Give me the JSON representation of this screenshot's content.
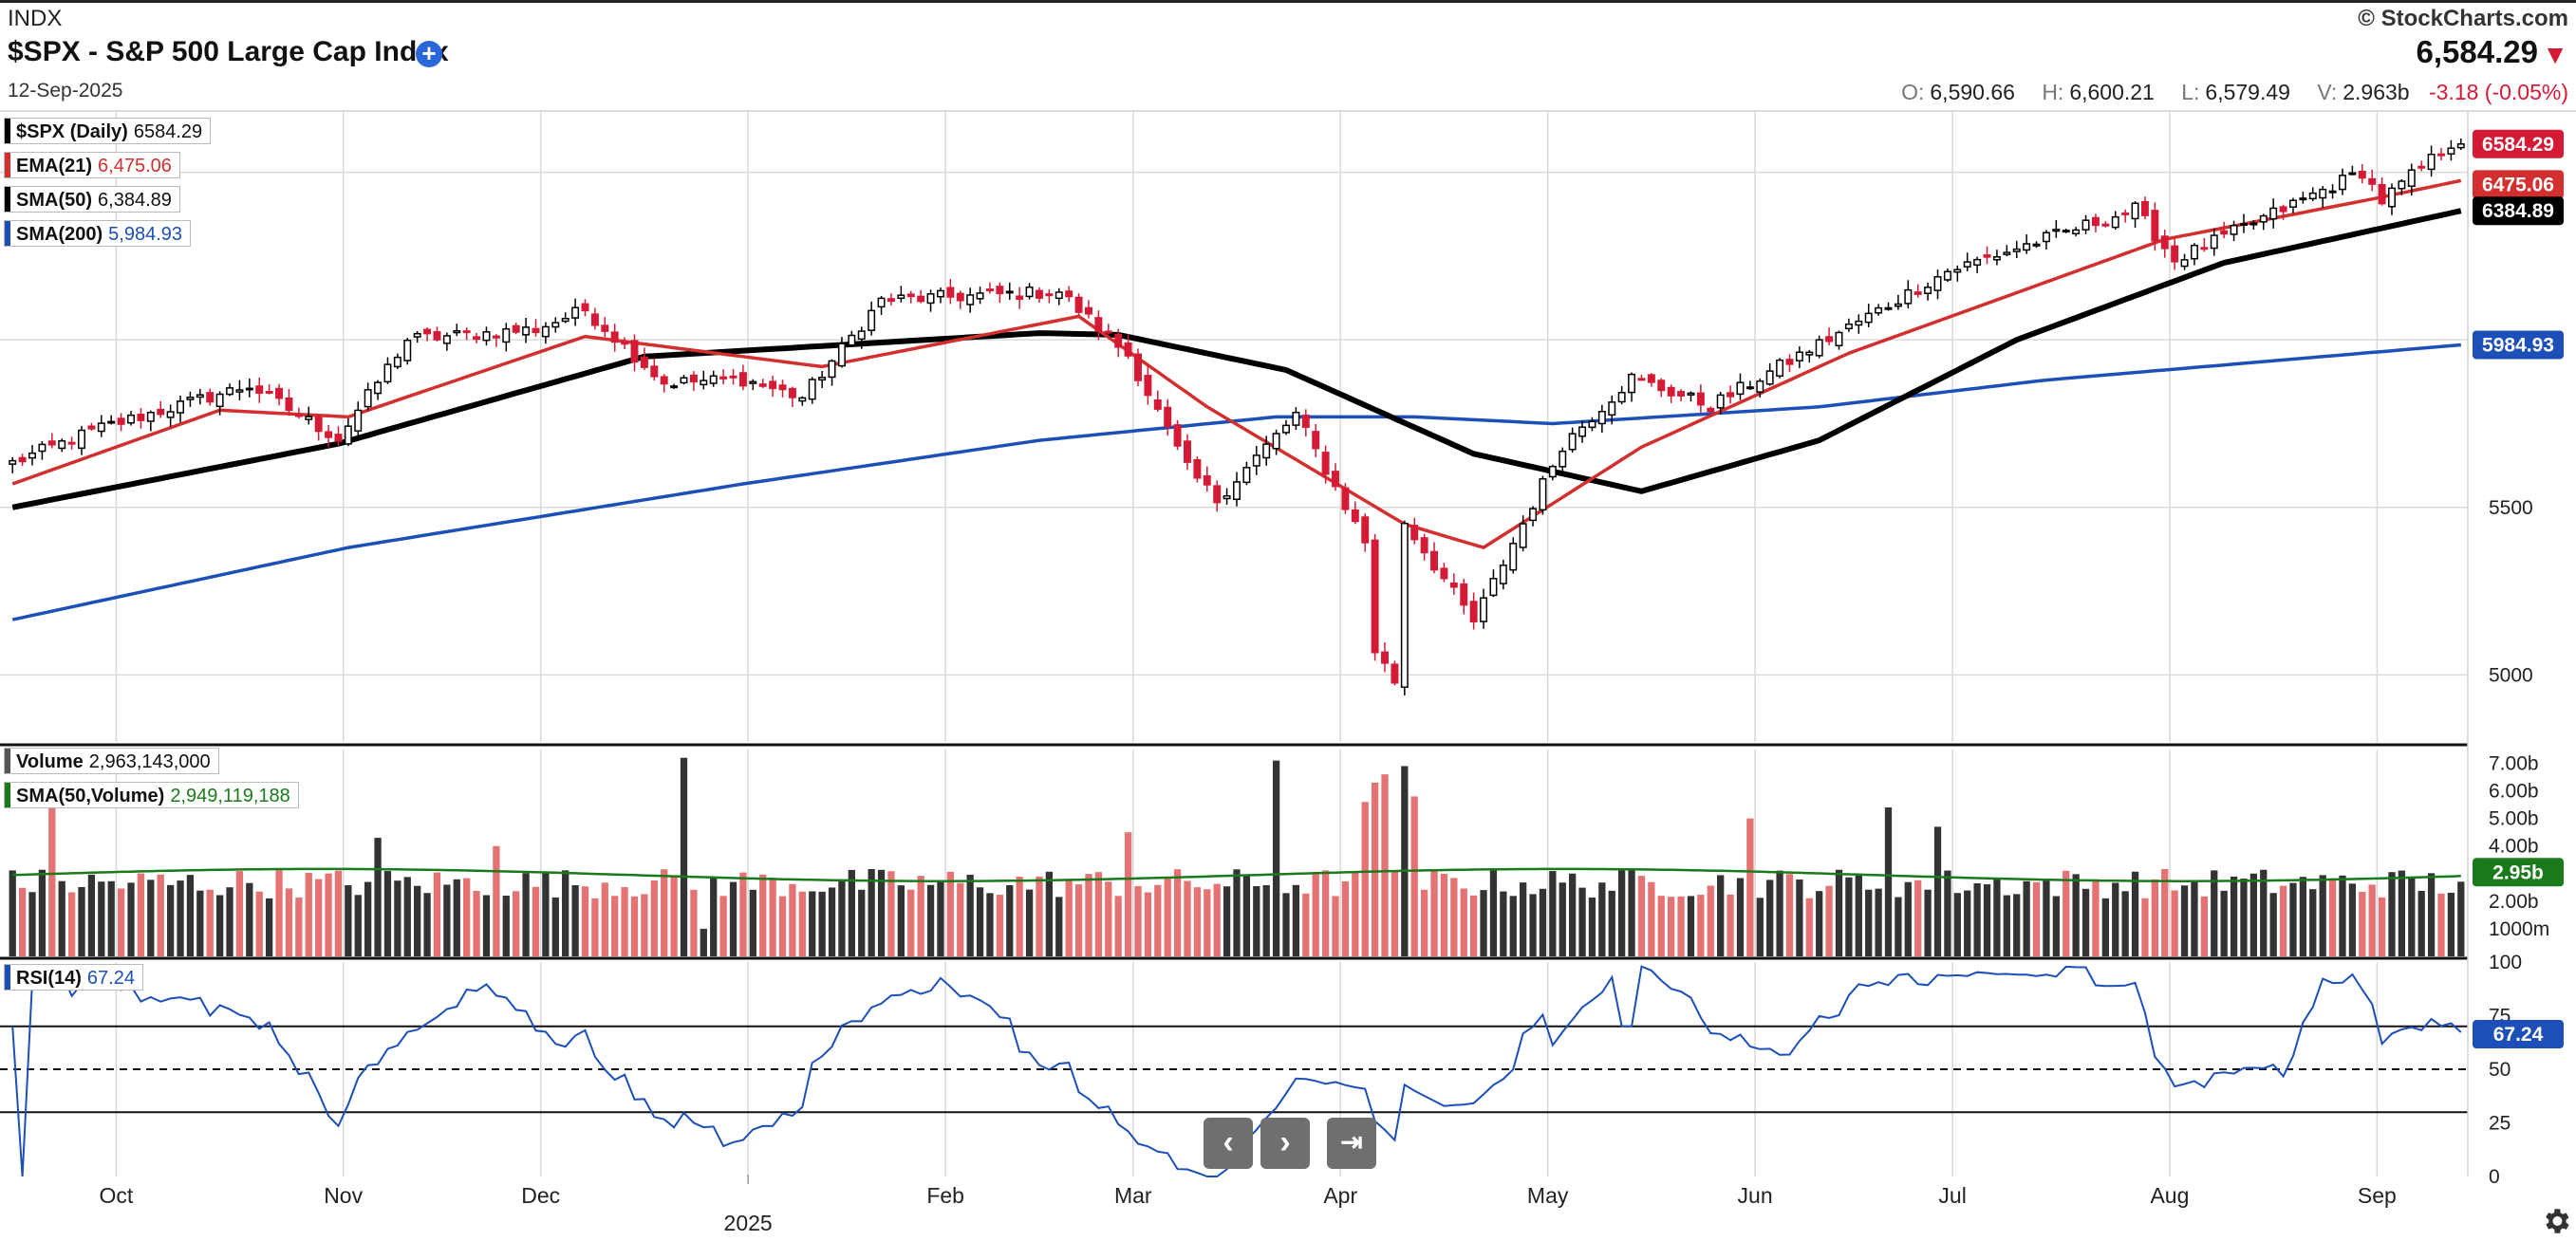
{
  "header": {
    "exchange": "INDX",
    "title": "$SPX - S&P 500 Large Cap Index",
    "add_symbol": "+",
    "date": "12-Sep-2025",
    "copyright": "© StockCharts.com",
    "last_price": "6,584.29",
    "down_arrow": "▼",
    "ohlc": {
      "o_label": "O:",
      "o": "6,590.66",
      "h_label": "H:",
      "h": "6,600.21",
      "l_label": "L:",
      "l": "6,579.49",
      "v_label": "V:",
      "v": "2.963b",
      "change": "-3.18 (-0.05%)"
    }
  },
  "legends": {
    "price": [
      {
        "label": "$SPX (Daily)",
        "value": "6584.29",
        "color": "#000000"
      },
      {
        "label": "EMA(21)",
        "value": "6,475.06",
        "color": "#d32f2f"
      },
      {
        "label": "SMA(50)",
        "value": "6,384.89",
        "color": "#000000"
      },
      {
        "label": "SMA(200)",
        "value": "5,984.93",
        "color": "#1d4fb8"
      }
    ],
    "volume": [
      {
        "label": "Volume",
        "value": "2,963,143,000",
        "color": "#555555"
      },
      {
        "label": "SMA(50,Volume)",
        "value": "2,949,119,188",
        "color": "#1b7a1b"
      }
    ],
    "rsi": [
      {
        "label": "RSI(14)",
        "value": "67.24",
        "color": "#1d4fb8"
      }
    ]
  },
  "nav": {
    "prev": "‹",
    "next": "›",
    "end": "⇥"
  },
  "colors": {
    "up": "#000000",
    "down": "#d51a36",
    "ema": "#d32f2f",
    "sma50": "#000000",
    "sma200": "#1d4fb8",
    "vol_up": "#333333",
    "vol_down": "#e57373",
    "vol_sma": "#1b7a1b",
    "rsi": "#1d4fb8"
  },
  "chart_data": {
    "type": "candlestick",
    "symbol": "$SPX",
    "x_ticks": [
      "Oct",
      "Nov",
      "Dec",
      "2025",
      "Feb",
      "Mar",
      "Apr",
      "May",
      "Jun",
      "Jul",
      "Aug",
      "Sep"
    ],
    "price_panel": {
      "ylim": [
        4800,
        6680
      ],
      "y_ticks": [
        5000,
        5500
      ],
      "axis_tags": [
        {
          "text": "6584.29",
          "value": 6584.29,
          "color": "#d51a36"
        },
        {
          "text": "6475.06",
          "value": 6475.06,
          "color": "#d32f2f"
        },
        {
          "text": "6384.89",
          "value": 6384.89,
          "color": "#000000"
        },
        {
          "text": "5984.93",
          "value": 5984.93,
          "color": "#1d4fb8"
        }
      ],
      "close_anchors": [
        [
          "2024-09-16",
          5633
        ],
        [
          "2024-09-27",
          5738
        ],
        [
          "2024-10-18",
          5864
        ],
        [
          "2024-10-31",
          5705
        ],
        [
          "2024-11-11",
          6001
        ],
        [
          "2024-11-29",
          6032
        ],
        [
          "2024-12-06",
          6090
        ],
        [
          "2024-12-18",
          5872
        ],
        [
          "2024-12-31",
          5882
        ],
        [
          "2025-01-10",
          5827
        ],
        [
          "2025-01-23",
          6118
        ],
        [
          "2025-02-19",
          6144
        ],
        [
          "2025-02-28",
          5955
        ],
        [
          "2025-03-10",
          5615
        ],
        [
          "2025-03-13",
          5522
        ],
        [
          "2025-03-25",
          5777
        ],
        [
          "2025-04-03",
          5397
        ],
        [
          "2025-04-04",
          5074
        ],
        [
          "2025-04-08",
          4982
        ],
        [
          "2025-04-09",
          5457
        ],
        [
          "2025-04-21",
          5158
        ],
        [
          "2025-05-02",
          5687
        ],
        [
          "2025-05-13",
          5886
        ],
        [
          "2025-05-23",
          5803
        ],
        [
          "2025-06-30",
          6205
        ],
        [
          "2025-07-28",
          6390
        ],
        [
          "2025-08-01",
          6238
        ],
        [
          "2025-08-28",
          6502
        ],
        [
          "2025-09-02",
          6415
        ],
        [
          "2025-09-11",
          6587
        ],
        [
          "2025-09-12",
          6584.29
        ]
      ],
      "ema21_anchors": [
        [
          "2024-09-16",
          5570
        ],
        [
          "2024-10-15",
          5790
        ],
        [
          "2024-11-01",
          5770
        ],
        [
          "2024-12-06",
          6010
        ],
        [
          "2025-01-14",
          5920
        ],
        [
          "2025-02-21",
          6070
        ],
        [
          "2025-03-12",
          5800
        ],
        [
          "2025-04-09",
          5450
        ],
        [
          "2025-04-22",
          5380
        ],
        [
          "2025-05-14",
          5680
        ],
        [
          "2025-06-13",
          5960
        ],
        [
          "2025-07-31",
          6300
        ],
        [
          "2025-08-29",
          6420
        ],
        [
          "2025-09-12",
          6475.06
        ]
      ],
      "sma50_anchors": [
        [
          "2024-09-16",
          5500
        ],
        [
          "2024-10-31",
          5690
        ],
        [
          "2024-12-16",
          5950
        ],
        [
          "2025-02-14",
          6020
        ],
        [
          "2025-02-27",
          6015
        ],
        [
          "2025-03-24",
          5910
        ],
        [
          "2025-04-21",
          5660
        ],
        [
          "2025-05-14",
          5548
        ],
        [
          "2025-06-10",
          5700
        ],
        [
          "2025-07-10",
          6000
        ],
        [
          "2025-08-08",
          6230
        ],
        [
          "2025-09-12",
          6384.89
        ]
      ],
      "sma200_anchors": [
        [
          "2024-09-16",
          5165
        ],
        [
          "2024-11-01",
          5380
        ],
        [
          "2024-12-31",
          5570
        ],
        [
          "2025-02-14",
          5700
        ],
        [
          "2025-03-21",
          5770
        ],
        [
          "2025-04-10",
          5770
        ],
        [
          "2025-05-01",
          5750
        ],
        [
          "2025-06-10",
          5800
        ],
        [
          "2025-07-15",
          5880
        ],
        [
          "2025-09-12",
          5984.93
        ]
      ]
    },
    "volume_panel": {
      "ylim": [
        0,
        7500000000
      ],
      "y_tick_labels": [
        "7.00b",
        "6.00b",
        "5.00b",
        "4.00b",
        "2.00b",
        "1000m"
      ],
      "y_tick_values": [
        7000000000,
        6000000000,
        5000000000,
        4000000000,
        2000000000,
        1000000000
      ],
      "axis_tag": {
        "text": "2.95b",
        "value": 2949119188
      },
      "sma50": 2949119188,
      "spikes": [
        [
          "2024-09-20",
          5400000000.0
        ],
        [
          "2024-11-06",
          4300000000.0
        ],
        [
          "2024-11-22",
          4000000000.0
        ],
        [
          "2024-12-20",
          7200000000.0
        ],
        [
          "2024-12-24",
          1000000000.0
        ],
        [
          "2025-02-28",
          4500000000.0
        ],
        [
          "2025-03-21",
          7100000000.0
        ],
        [
          "2025-04-03",
          5600000000.0
        ],
        [
          "2025-04-04",
          6300000000.0
        ],
        [
          "2025-04-07",
          6600000000.0
        ],
        [
          "2025-04-09",
          6900000000.0
        ],
        [
          "2025-04-10",
          5800000000.0
        ],
        [
          "2025-05-30",
          5000000000.0
        ],
        [
          "2025-06-20",
          5400000000.0
        ],
        [
          "2025-06-27",
          4700000000.0
        ]
      ]
    },
    "rsi_panel": {
      "ylim": [
        0,
        100
      ],
      "y_ticks": [
        100,
        75,
        50,
        25,
        0
      ],
      "overbought": 70,
      "oversold": 30,
      "midline": 50,
      "axis_tag": {
        "text": "67.24",
        "value": 67.24
      },
      "last": 67.24
    }
  }
}
